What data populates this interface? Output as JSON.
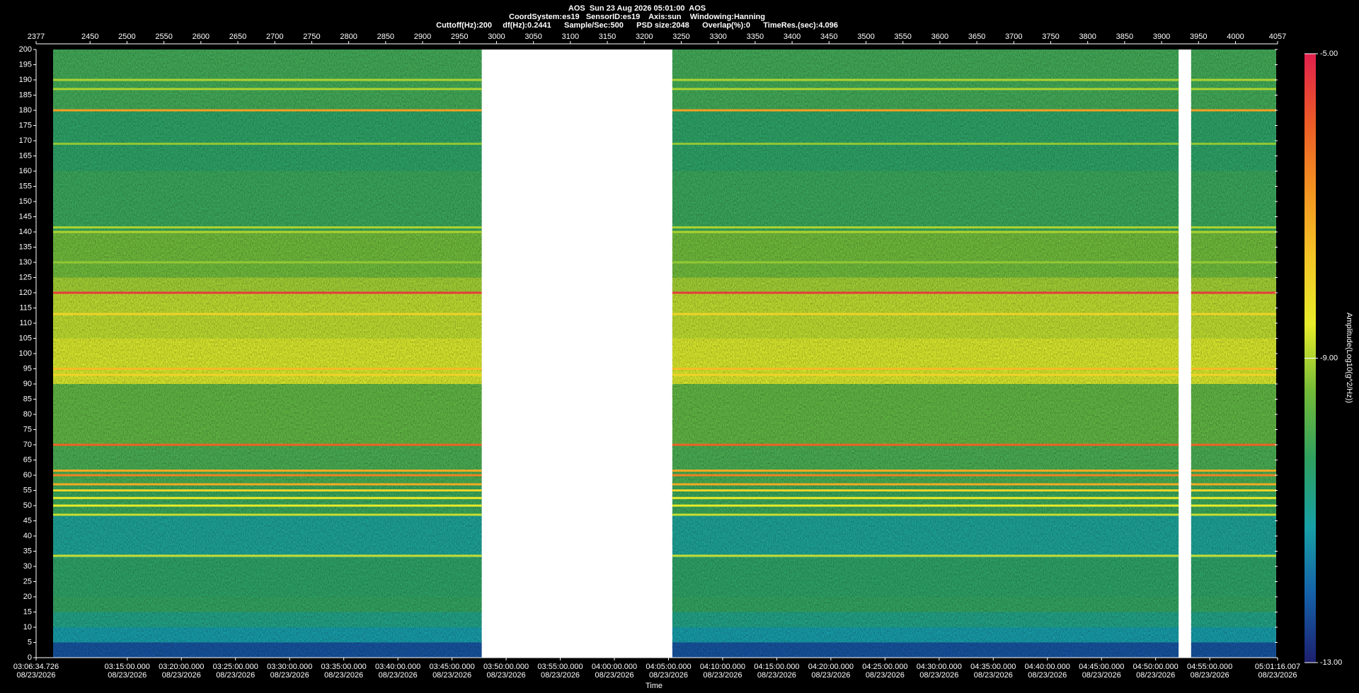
{
  "chart_data": {
    "type": "spectrogram",
    "title": "AOS  Sun 23 Aug 2026 05:01:00  AOS",
    "subtitle": [
      "CoordSystem:es19   SensorID:es19    Axis:sun    Windowing:Hanning",
      "Cuttoff(Hz):200     df(Hz):0.2441      Sample/Sec:500      PSD size:2048      Overlap(%):0      TimeRes.(sec):4.096"
    ],
    "xlabel": "Time",
    "colorbar_label": "Amplitude(Log10(g^2/Hz))",
    "xlim": [
      "03:06:34.726",
      "05:01:16.007"
    ],
    "xticks": [
      "03:06:34.726",
      "03:15:00.000",
      "03:20:00.000",
      "03:25:00.000",
      "03:30:00.000",
      "03:35:00.000",
      "03:40:00.000",
      "03:45:00.000",
      "03:50:00.000",
      "03:55:00.000",
      "04:00:00.000",
      "04:05:00.000",
      "04:10:00.000",
      "04:15:00.000",
      "04:20:00.000",
      "04:25:00.000",
      "04:30:00.000",
      "04:35:00.000",
      "04:40:00.000",
      "04:45:00.000",
      "04:50:00.000",
      "04:55:00.000",
      "05:01:16.007"
    ],
    "xtick_date": "08/23/2026",
    "x2lim": [
      2377,
      4057
    ],
    "x2ticks": [
      2377,
      2450,
      2500,
      2550,
      2600,
      2650,
      2700,
      2750,
      2800,
      2850,
      2900,
      2950,
      3000,
      3050,
      3100,
      3150,
      3200,
      3250,
      3300,
      3350,
      3400,
      3450,
      3500,
      3550,
      3600,
      3650,
      3700,
      3750,
      3800,
      3850,
      3900,
      3950,
      4000,
      4057
    ],
    "ylim": [
      0,
      200
    ],
    "yticks": [
      0,
      5,
      10,
      15,
      20,
      25,
      30,
      35,
      40,
      45,
      50,
      55,
      60,
      65,
      70,
      75,
      80,
      85,
      90,
      95,
      100,
      105,
      110,
      115,
      120,
      125,
      130,
      135,
      140,
      145,
      150,
      155,
      160,
      165,
      170,
      175,
      180,
      185,
      190,
      195,
      200
    ],
    "clim": [
      -13,
      -5
    ],
    "cticks": [
      {
        "value": -13,
        "label": "-13.00"
      },
      {
        "value": -9,
        "label": "-9.00"
      },
      {
        "value": -5,
        "label": "-5.00"
      }
    ],
    "colormap": [
      "#1c1f6e",
      "#1560a8",
      "#17a0a6",
      "#2fa060",
      "#72ba38",
      "#e8ec2a",
      "#f5c426",
      "#f39221",
      "#ec5a27",
      "#e2204c"
    ],
    "segments": [
      [
        2400,
        2980
      ],
      [
        3238,
        3923
      ],
      [
        3940,
        4055
      ]
    ],
    "bands": {
      "freq_edges": [
        0,
        5,
        10,
        15,
        20,
        33,
        47,
        57,
        70,
        90,
        105,
        120,
        125,
        140,
        160,
        180,
        200
      ],
      "levels": [
        -12.3,
        -11.3,
        -10.8,
        -10.3,
        -10.4,
        -11.0,
        -10.2,
        -10.0,
        -9.7,
        -8.7,
        -8.9,
        -9.1,
        -9.5,
        -10.2,
        -10.4,
        -10.1
      ]
    },
    "lines": [
      {
        "freq": 120,
        "level": -5.4
      },
      {
        "freq": 180,
        "level": -7.0
      },
      {
        "freq": 70,
        "level": -6.0
      },
      {
        "freq": 60,
        "level": -6.5
      },
      {
        "freq": 61.5,
        "level": -7.2
      },
      {
        "freq": 57,
        "level": -7.2
      },
      {
        "freq": 55,
        "level": -8.0
      },
      {
        "freq": 52.5,
        "level": -8.5
      },
      {
        "freq": 50,
        "level": -8.5
      },
      {
        "freq": 47,
        "level": -8.8
      },
      {
        "freq": 33.5,
        "level": -8.8
      },
      {
        "freq": 95,
        "level": -7.5
      },
      {
        "freq": 93,
        "level": -8.0
      },
      {
        "freq": 113,
        "level": -8.0
      },
      {
        "freq": 140,
        "level": -9.0
      },
      {
        "freq": 141.5,
        "level": -9.0
      },
      {
        "freq": 187,
        "level": -9.0
      },
      {
        "freq": 190,
        "level": -9.0
      },
      {
        "freq": 130,
        "level": -9.2
      },
      {
        "freq": 169,
        "level": -9.2
      }
    ]
  }
}
